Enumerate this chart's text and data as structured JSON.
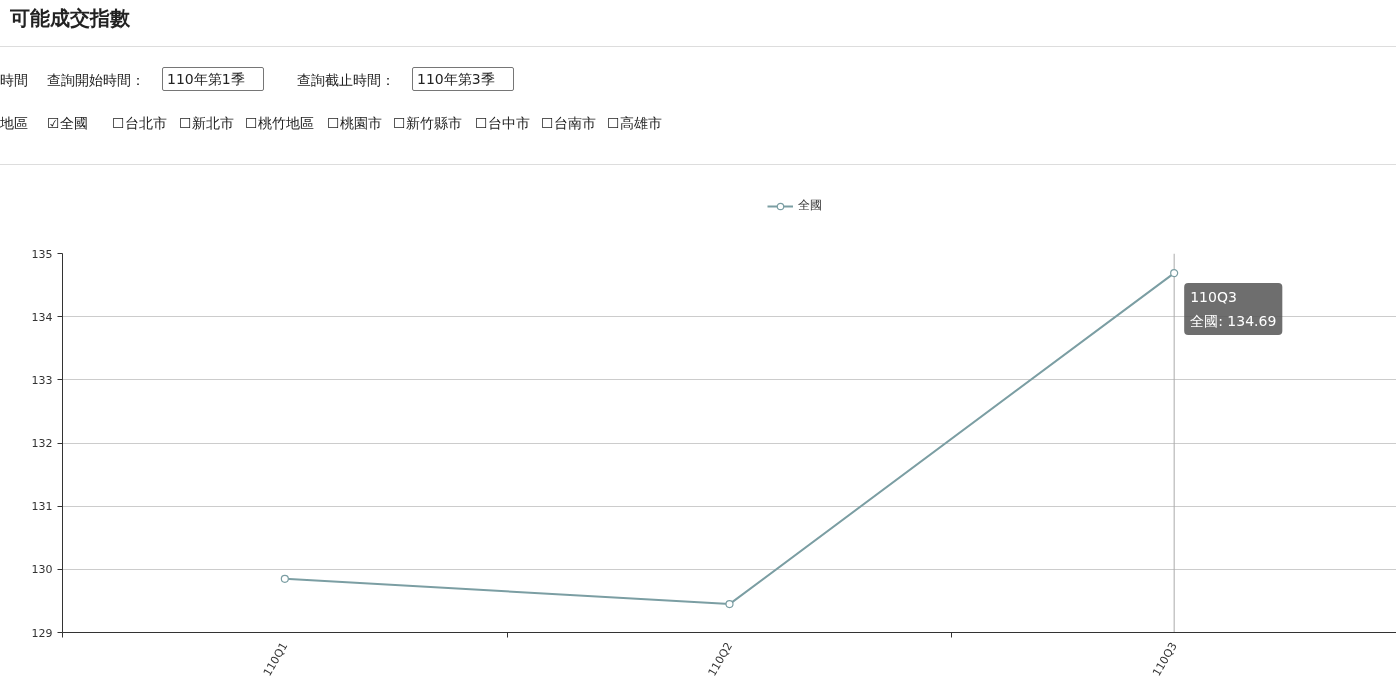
{
  "chart_data": {
    "type": "line",
    "title": "可能成交指數",
    "categories": [
      "110Q1",
      "110Q2",
      "110Q3"
    ],
    "series": [
      {
        "name": "全國",
        "color": "#7b9ea3",
        "values": [
          129.85,
          129.45,
          134.69
        ]
      }
    ],
    "ylim": [
      129,
      135
    ],
    "yticks": [
      129,
      130,
      131,
      132,
      133,
      134,
      135
    ],
    "grid": "y",
    "legend": "top",
    "marker": "circle",
    "ref_lines": [
      {
        "axis": "x",
        "value": "110Q3",
        "color": "#aaaaaa"
      }
    ],
    "annotations": [
      "時間",
      "查詢開始時間：",
      "110年第1季",
      "查詢截止時間：",
      "110年第3季",
      "地區",
      "☑全國",
      "☐台北市",
      "☐新北市",
      "☐桃竹地區",
      "☐桃園市",
      "☐新竹縣市",
      "☐台中市",
      "☐台南市",
      "☐高雄市",
      {
        "text": "110Q3\n全國: 134.69",
        "x": "110Q3",
        "y": 134.69
      }
    ]
  }
}
